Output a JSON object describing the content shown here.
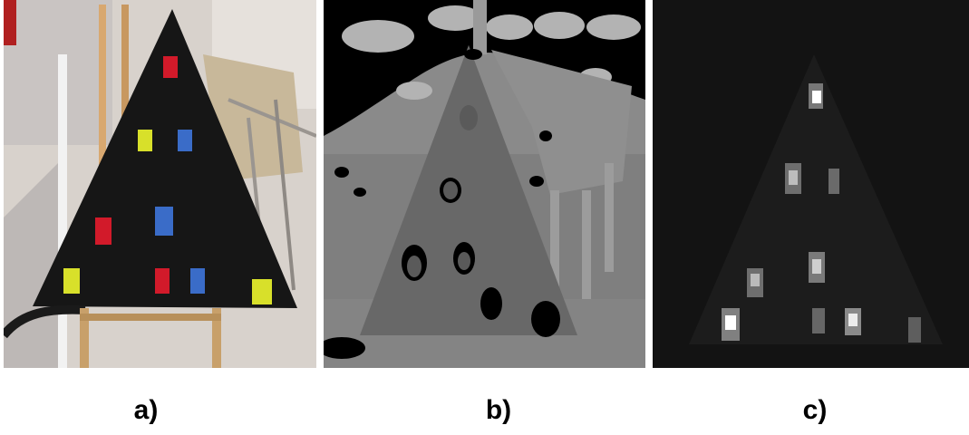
{
  "panels": [
    {
      "caption": "a)",
      "kind": "rgb-photo"
    },
    {
      "caption": "b)",
      "kind": "depth-map"
    },
    {
      "caption": "c)",
      "kind": "intensity-map"
    }
  ],
  "colors": {
    "board": "#161616",
    "marker_red": "#d21a2a",
    "marker_yellow": "#d8e02a",
    "marker_blue": "#3a6cc8",
    "depth_hole": "#000000",
    "intensity_bg": "#131313",
    "hotspot": "#ffffff"
  }
}
